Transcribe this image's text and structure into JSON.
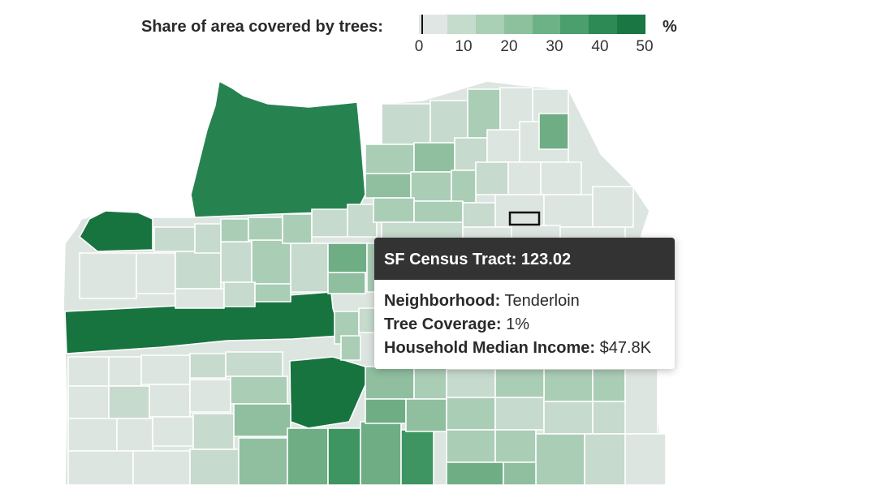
{
  "legend": {
    "title": "Share of area covered by trees:",
    "unit": "%",
    "ticks": [
      "0",
      "10",
      "20",
      "30",
      "40",
      "50"
    ],
    "colors": [
      "#dfe6e3",
      "#c5dccd",
      "#a9cfb5",
      "#8dc19e",
      "#6db287",
      "#4a9f6c",
      "#2d8a54",
      "#1a7642"
    ]
  },
  "map": {
    "colors": {
      "c1": "#dde5e1",
      "c2": "#c6dacd",
      "c3": "#aacdb6",
      "c4": "#8fbf9f",
      "c5": "#6fad85",
      "c6": "#3e9561",
      "c7": "#268350",
      "c8": "#18743f",
      "highlight_stroke": "#111111"
    }
  },
  "tooltip": {
    "title": "SF Census Tract: 123.02",
    "neighborhood_key": "Neighborhood:",
    "neighborhood_value": "Tenderloin",
    "coverage_key": "Tree Coverage:",
    "coverage_value": "1%",
    "income_key": "Household Median Income:",
    "income_value": "$47.8K"
  }
}
